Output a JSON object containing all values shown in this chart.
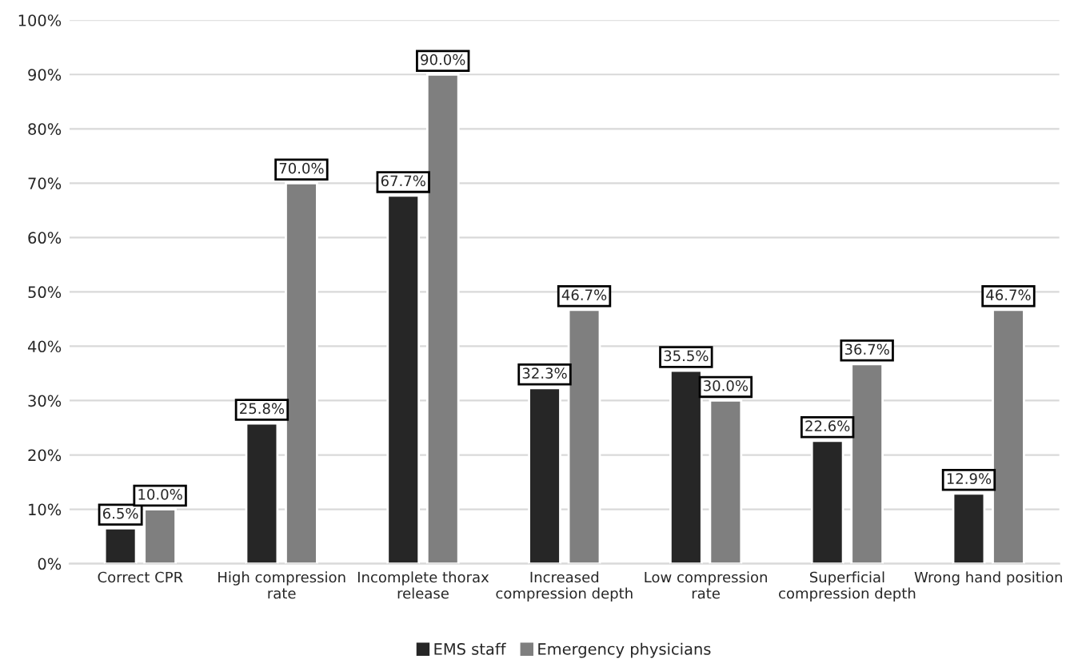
{
  "chart_data": {
    "type": "bar",
    "categories": [
      "Correct CPR",
      "High compression\nrate",
      "Incomplete thorax\nrelease",
      "Increased\ncompression depth",
      "Low compression\nrate",
      "Superficial\ncompression depth",
      "Wrong hand position"
    ],
    "series": [
      {
        "name": "EMS staff",
        "color": "#262626",
        "values": [
          6.5,
          25.8,
          67.7,
          32.3,
          35.5,
          22.6,
          12.9
        ],
        "value_labels": [
          "6.5%",
          "25.8%",
          "67.7%",
          "32.3%",
          "35.5%",
          "22.6%",
          "12.9%"
        ]
      },
      {
        "name": "Emergency physicians",
        "color": "#7f7f7f",
        "values": [
          10.0,
          70.0,
          90.0,
          46.7,
          30.0,
          36.7,
          46.7
        ],
        "value_labels": [
          "10.0%",
          "70.0%",
          "90.0%",
          "46.7%",
          "30.0%",
          "36.7%",
          "46.7%"
        ]
      }
    ],
    "ylim": [
      0,
      100
    ],
    "yticks": [
      {
        "value": 0,
        "label": "0%"
      },
      {
        "value": 10,
        "label": "10%"
      },
      {
        "value": 20,
        "label": "20%"
      },
      {
        "value": 30,
        "label": "30%"
      },
      {
        "value": 40,
        "label": "40%"
      },
      {
        "value": 50,
        "label": "50%"
      },
      {
        "value": 60,
        "label": "60%"
      },
      {
        "value": 70,
        "label": "70%"
      },
      {
        "value": 80,
        "label": "80%"
      },
      {
        "value": 90,
        "label": "90%"
      },
      {
        "value": 100,
        "label": "100%"
      }
    ],
    "grid": "y",
    "legend": "bottom"
  }
}
